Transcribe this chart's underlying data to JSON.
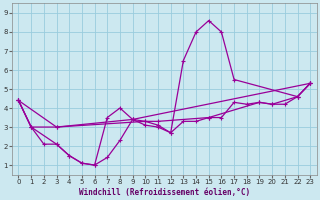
{
  "bg_color": "#cce8f0",
  "grid_color": "#99ccdd",
  "line_color": "#990099",
  "xlabel": "Windchill (Refroidissement éolien,°C)",
  "xlim": [
    -0.5,
    23.5
  ],
  "ylim": [
    0.5,
    9.5
  ],
  "xticks": [
    0,
    1,
    2,
    3,
    4,
    5,
    6,
    7,
    8,
    9,
    10,
    11,
    12,
    13,
    14,
    15,
    16,
    17,
    18,
    19,
    20,
    21,
    22,
    23
  ],
  "yticks": [
    1,
    2,
    3,
    4,
    5,
    6,
    7,
    8,
    9
  ],
  "lines": [
    {
      "x": [
        0,
        1,
        3,
        10,
        11,
        15,
        19,
        20,
        22,
        23
      ],
      "y": [
        4.4,
        3.0,
        3.0,
        3.3,
        3.3,
        3.5,
        4.3,
        4.2,
        4.6,
        5.3
      ]
    },
    {
      "x": [
        0,
        1,
        2,
        3,
        4,
        5,
        6,
        7,
        8,
        9,
        10,
        11,
        12,
        13,
        14,
        15,
        16,
        17,
        18,
        19,
        20,
        21,
        22,
        23
      ],
      "y": [
        4.4,
        3.0,
        2.1,
        2.1,
        1.5,
        1.1,
        1.0,
        1.4,
        2.3,
        3.4,
        3.3,
        3.1,
        2.7,
        3.3,
        3.3,
        3.5,
        3.5,
        4.3,
        4.2,
        4.3,
        4.2,
        4.2,
        4.6,
        5.3
      ]
    },
    {
      "x": [
        0,
        1,
        3,
        4,
        5,
        6,
        7,
        8,
        9,
        10,
        11,
        12,
        13,
        14,
        15,
        16,
        17,
        22,
        23
      ],
      "y": [
        4.4,
        3.0,
        2.1,
        1.5,
        1.1,
        1.0,
        3.5,
        4.0,
        3.4,
        3.1,
        3.0,
        2.7,
        6.5,
        8.0,
        8.6,
        8.0,
        5.5,
        4.6,
        5.3
      ]
    },
    {
      "x": [
        0,
        3,
        9,
        23
      ],
      "y": [
        4.4,
        3.0,
        3.4,
        5.3
      ]
    }
  ]
}
